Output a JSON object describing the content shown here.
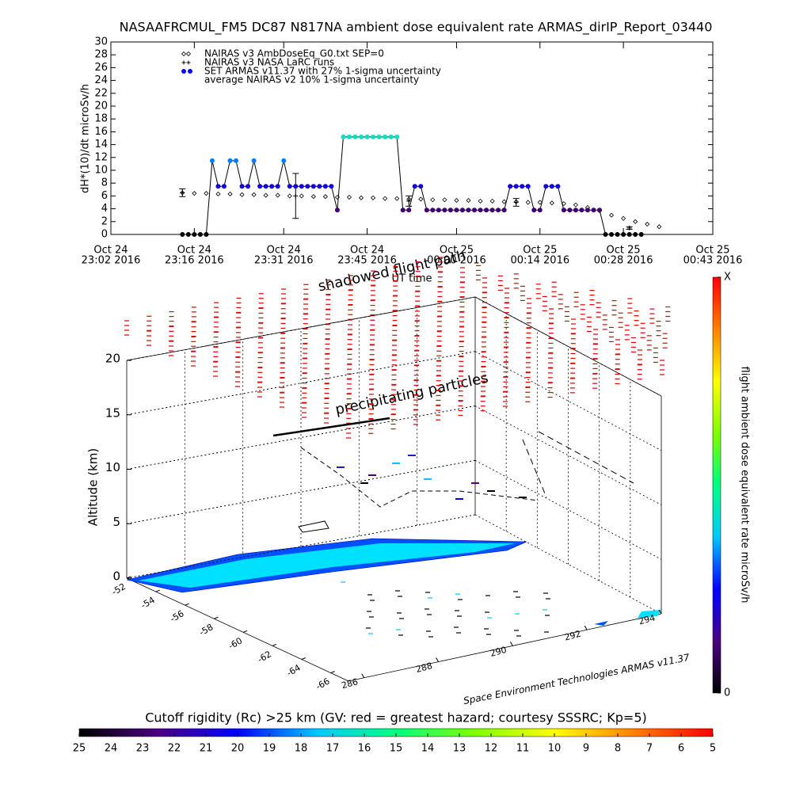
{
  "chart_data": [
    {
      "type": "line",
      "title": "NASAAFRCMUL_FM5 DC87 N817NA ambient dose equivalent rate ARMAS_dirIP_Report_03440",
      "ylabel": "dH*(10)/dt microSv/h",
      "xlabel": "UT time",
      "xlim": [
        "2016-10-24 23:02",
        "2016-10-25 00:43"
      ],
      "xticks": [
        {
          "value": "2016-10-24 23:02",
          "label": [
            "Oct 24",
            "23:02 2016"
          ]
        },
        {
          "value": "2016-10-24 23:16",
          "label": [
            "Oct 24",
            "23:16 2016"
          ]
        },
        {
          "value": "2016-10-24 23:31",
          "label": [
            "Oct 24",
            "23:31 2016"
          ]
        },
        {
          "value": "2016-10-24 23:45",
          "label": [
            "Oct 24",
            "23:45 2016"
          ]
        },
        {
          "value": "2016-10-25 00:00",
          "label": [
            "Oct 25",
            "00:00 2016"
          ]
        },
        {
          "value": "2016-10-25 00:14",
          "label": [
            "Oct 25",
            "00:14 2016"
          ]
        },
        {
          "value": "2016-10-25 00:28",
          "label": [
            "Oct 25",
            "00:28 2016"
          ]
        },
        {
          "value": "2016-10-25 00:43",
          "label": [
            "Oct 25",
            "00:43 2016"
          ]
        }
      ],
      "ylim": [
        0,
        30
      ],
      "yticks": [
        0,
        2,
        4,
        6,
        8,
        10,
        12,
        14,
        16,
        18,
        20,
        22,
        24,
        26,
        28,
        30
      ],
      "series": [
        {
          "name": "NAIRAS v3 AmbDoseEq_G0.txt SEP=0",
          "marker": "diamond",
          "color": "#000000",
          "x": [
            "2016-10-24 23:14",
            "2016-10-24 23:16",
            "2016-10-24 23:18",
            "2016-10-24 23:20",
            "2016-10-24 23:22",
            "2016-10-24 23:24",
            "2016-10-24 23:26",
            "2016-10-24 23:28",
            "2016-10-24 23:30",
            "2016-10-24 23:32",
            "2016-10-24 23:34",
            "2016-10-24 23:36",
            "2016-10-24 23:38",
            "2016-10-24 23:40",
            "2016-10-24 23:42",
            "2016-10-24 23:44",
            "2016-10-24 23:46",
            "2016-10-24 23:48",
            "2016-10-24 23:50",
            "2016-10-24 23:52",
            "2016-10-24 23:54",
            "2016-10-24 23:56",
            "2016-10-24 23:58",
            "2016-10-25 00:00",
            "2016-10-25 00:02",
            "2016-10-25 00:04",
            "2016-10-25 00:06",
            "2016-10-25 00:08",
            "2016-10-25 00:10",
            "2016-10-25 00:12",
            "2016-10-25 00:14",
            "2016-10-25 00:16",
            "2016-10-25 00:18",
            "2016-10-25 00:20",
            "2016-10-25 00:22",
            "2016-10-25 00:24",
            "2016-10-25 00:26",
            "2016-10-25 00:28",
            "2016-10-25 00:30",
            "2016-10-25 00:32",
            "2016-10-25 00:34"
          ],
          "values": [
            6.5,
            6.4,
            6.4,
            6.3,
            6.3,
            6.2,
            6.2,
            6.1,
            6.1,
            6.0,
            6.0,
            5.9,
            5.9,
            5.8,
            5.8,
            5.7,
            5.7,
            5.6,
            5.6,
            5.5,
            5.5,
            5.4,
            5.4,
            5.3,
            5.3,
            5.2,
            5.2,
            5.1,
            5.1,
            5.0,
            5.0,
            4.9,
            4.8,
            4.6,
            4.2,
            3.7,
            3.0,
            2.5,
            2.0,
            1.6,
            1.2
          ]
        },
        {
          "name": "NAIRAS v3 NASA LaRC runs",
          "marker": "plus",
          "color": "#000000",
          "x": [
            "2016-10-24 23:14",
            "2016-10-24 23:33",
            "2016-10-24 23:52",
            "2016-10-25 00:10",
            "2016-10-25 00:29"
          ],
          "values": [
            6.5,
            6.0,
            5.2,
            5.0,
            1.0
          ],
          "errors": [
            0.6,
            3.5,
            0.8,
            0.6,
            0.2
          ]
        },
        {
          "name": "SET ARMAS v11.37 with 27% 1-sigma uncertainty",
          "marker": "dot",
          "color": "#0000ff",
          "x": [
            "2016-10-24 23:14",
            "2016-10-24 23:15",
            "2016-10-24 23:16",
            "2016-10-24 23:17",
            "2016-10-24 23:18",
            "2016-10-24 23:19",
            "2016-10-24 23:20",
            "2016-10-24 23:21",
            "2016-10-24 23:22",
            "2016-10-24 23:23",
            "2016-10-24 23:24",
            "2016-10-24 23:25",
            "2016-10-24 23:26",
            "2016-10-24 23:27",
            "2016-10-24 23:28",
            "2016-10-24 23:29",
            "2016-10-24 23:30",
            "2016-10-24 23:31",
            "2016-10-24 23:32",
            "2016-10-24 23:33",
            "2016-10-24 23:34",
            "2016-10-24 23:35",
            "2016-10-24 23:36",
            "2016-10-24 23:37",
            "2016-10-24 23:38",
            "2016-10-24 23:39",
            "2016-10-24 23:40",
            "2016-10-24 23:41",
            "2016-10-24 23:42",
            "2016-10-24 23:43",
            "2016-10-24 23:44",
            "2016-10-24 23:45",
            "2016-10-24 23:46",
            "2016-10-24 23:47",
            "2016-10-24 23:48",
            "2016-10-24 23:49",
            "2016-10-24 23:50",
            "2016-10-24 23:51",
            "2016-10-24 23:52",
            "2016-10-24 23:53",
            "2016-10-24 23:54",
            "2016-10-24 23:55",
            "2016-10-24 23:56",
            "2016-10-24 23:57",
            "2016-10-24 23:58",
            "2016-10-24 23:59",
            "2016-10-25 00:00",
            "2016-10-25 00:01",
            "2016-10-25 00:02",
            "2016-10-25 00:03",
            "2016-10-25 00:04",
            "2016-10-25 00:05",
            "2016-10-25 00:06",
            "2016-10-25 00:07",
            "2016-10-25 00:08",
            "2016-10-25 00:09",
            "2016-10-25 00:10",
            "2016-10-25 00:11",
            "2016-10-25 00:12",
            "2016-10-25 00:13",
            "2016-10-25 00:14",
            "2016-10-25 00:15",
            "2016-10-25 00:16",
            "2016-10-25 00:17",
            "2016-10-25 00:18",
            "2016-10-25 00:19",
            "2016-10-25 00:20",
            "2016-10-25 00:21",
            "2016-10-25 00:22",
            "2016-10-25 00:23",
            "2016-10-25 00:24",
            "2016-10-25 00:25",
            "2016-10-25 00:26",
            "2016-10-25 00:27",
            "2016-10-25 00:28",
            "2016-10-25 00:29",
            "2016-10-25 00:30",
            "2016-10-25 00:31"
          ],
          "values": [
            0,
            0,
            0,
            0,
            0,
            11.5,
            7.5,
            7.5,
            11.5,
            11.5,
            7.5,
            7.5,
            11.5,
            7.5,
            7.5,
            7.5,
            7.5,
            11.5,
            7.5,
            7.5,
            7.5,
            7.5,
            7.5,
            7.5,
            7.5,
            7.5,
            3.8,
            15.2,
            15.2,
            15.2,
            15.2,
            15.2,
            15.2,
            15.2,
            15.2,
            15.2,
            15.2,
            3.8,
            3.8,
            7.5,
            7.5,
            3.8,
            3.8,
            3.8,
            3.8,
            3.8,
            3.8,
            3.8,
            3.8,
            3.8,
            3.8,
            3.8,
            3.8,
            3.8,
            3.8,
            7.5,
            7.5,
            7.5,
            7.5,
            3.8,
            3.8,
            7.5,
            7.5,
            7.5,
            3.8,
            3.8,
            3.8,
            3.8,
            3.8,
            3.8,
            3.8,
            0,
            0,
            0,
            0,
            0,
            0,
            0
          ]
        },
        {
          "name": "average NAIRAS v2 10% 1-sigma uncertainty"
        }
      ],
      "colorbar": {
        "label": "flight ambient dose equivalent rate microSv/h",
        "zlim": [
          0,
          35
        ],
        "ticks": [
          0,
          {
            "value": 35,
            "label": "X"
          }
        ],
        "colors": [
          "#000000",
          "#4b0082",
          "#0000ff",
          "#00c8ff",
          "#00ff80",
          "#80ff00",
          "#ffff00",
          "#ff8000",
          "#ff0000"
        ]
      }
    },
    {
      "type": "surface3d",
      "zlabel": "Altitude (km)",
      "zticks": [
        0,
        5,
        10,
        15,
        20
      ],
      "lat_ticks": [
        -52,
        -54,
        -56,
        -58,
        -60,
        -62,
        -64,
        -66
      ],
      "lon_ticks": [
        286,
        288,
        290,
        292,
        294
      ],
      "annotations": [
        "shadowed flight path",
        "precipitating particles"
      ],
      "credit": "Space Environment Technologies ARMAS v11.37",
      "colorbar": {
        "title": "Cutoff rigidity (Rc) >25 km (GV: red = greatest hazard; courtesy SSSRC; Kp=5)",
        "ticks": [
          25,
          24,
          23,
          22,
          21,
          20,
          19,
          18,
          17,
          16,
          15,
          14,
          13,
          12,
          11,
          10,
          9,
          8,
          7,
          6,
          5
        ],
        "colors": [
          "#000000",
          "#4b0082",
          "#0000ff",
          "#00c8ff",
          "#00ff80",
          "#80ff00",
          "#ffff00",
          "#ff8000",
          "#ff0000"
        ]
      }
    }
  ]
}
